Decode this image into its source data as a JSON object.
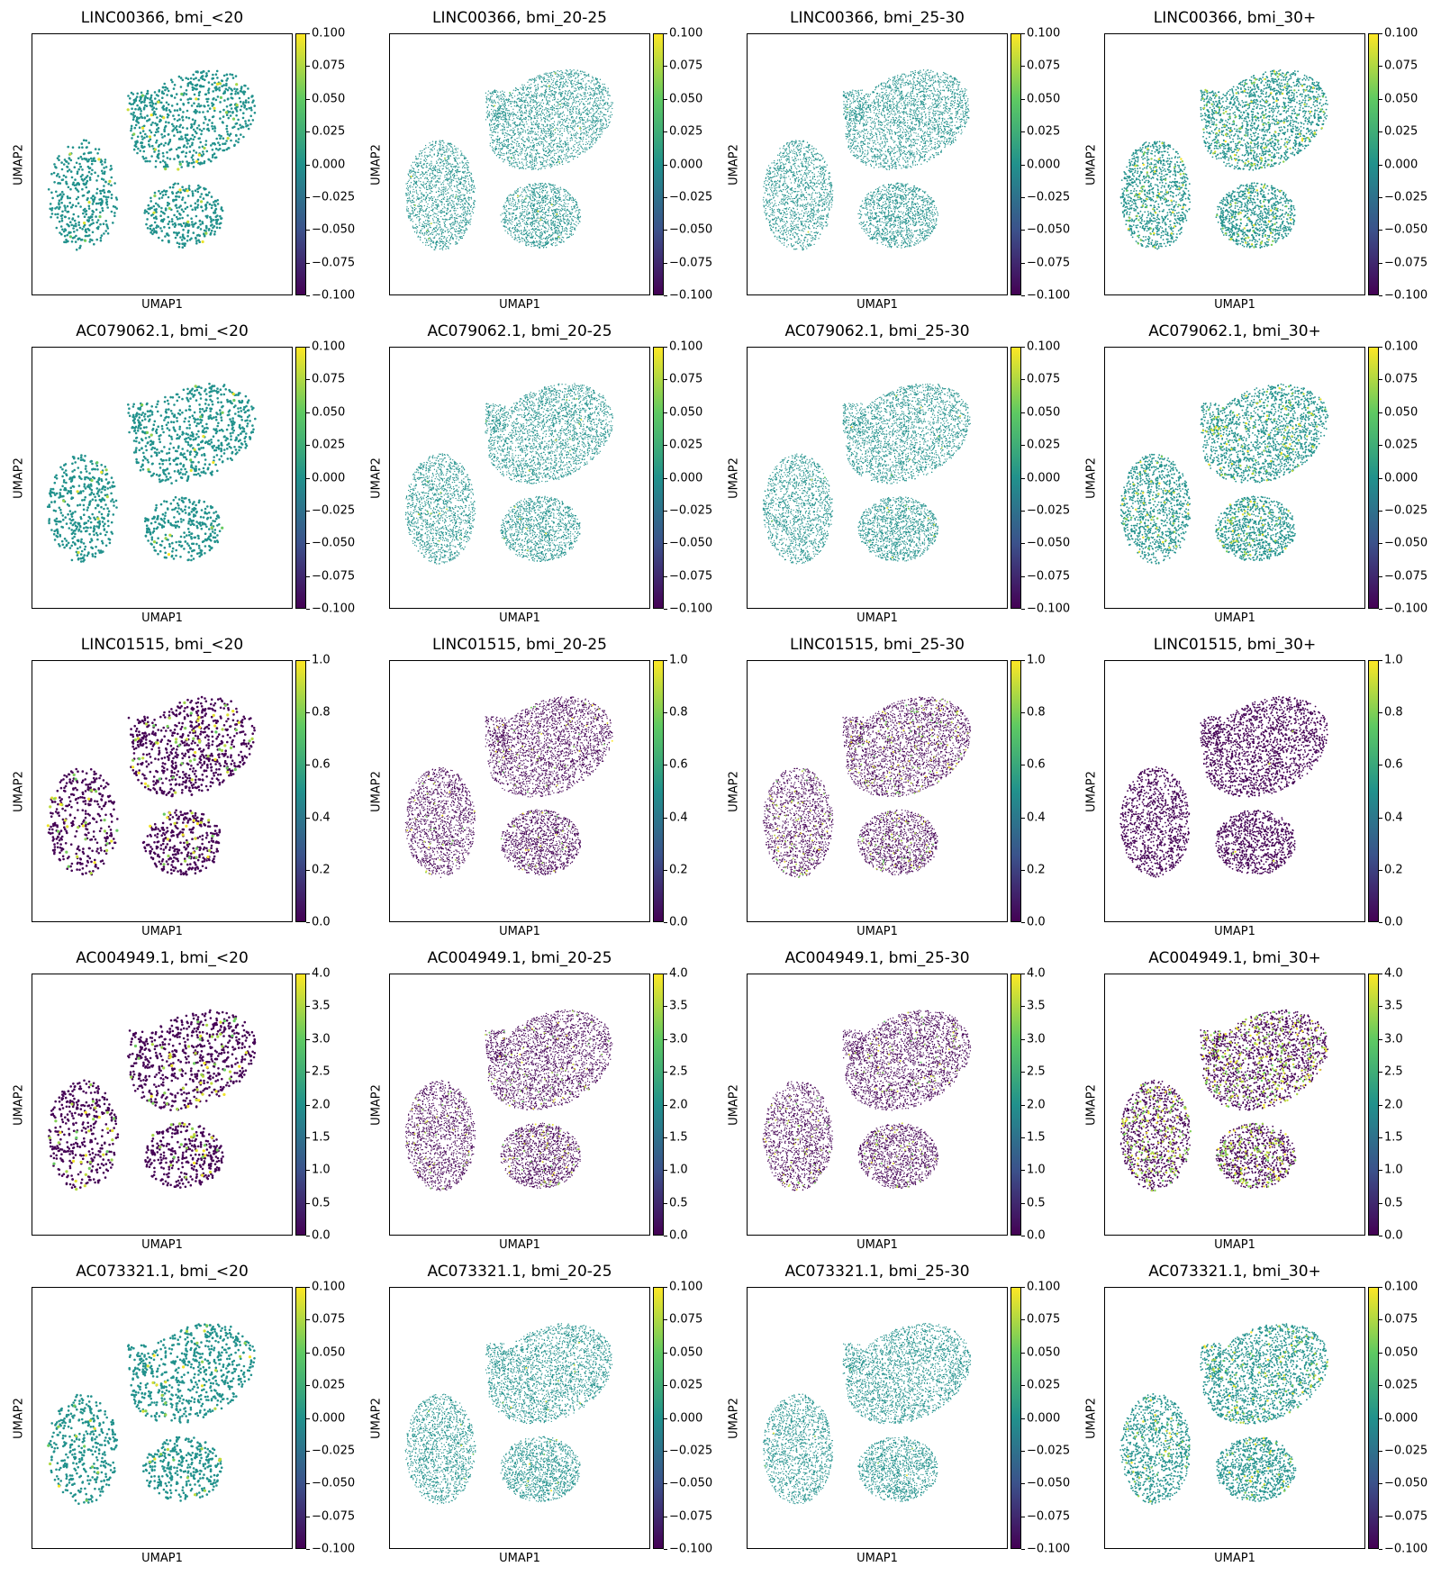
{
  "chart_data": {
    "type": "scatter",
    "layout": "grid of UMAP embedding plots, 5 genes x 4 BMI groups",
    "xlabel": "UMAP1",
    "ylabel": "UMAP2",
    "colormap": "viridis",
    "colormap_stops": [
      "#440154",
      "#3b528b",
      "#21918c",
      "#5ec962",
      "#fde725"
    ],
    "background_color": "#21918c",
    "groups": [
      "bmi_<20",
      "bmi_20-25",
      "bmi_25-30",
      "bmi_30+"
    ],
    "genes": [
      {
        "gene": "LINC00366",
        "color_range": [
          -0.1,
          0.1
        ],
        "colorbar_ticks": [
          "0.100",
          "0.075",
          "0.050",
          "0.025",
          "0.000",
          "−0.025",
          "−0.050",
          "−0.075",
          "−0.100"
        ],
        "panels": [
          {
            "title": "LINC00366, bmi_<20",
            "base_value": 0.0,
            "highlight_density": 0.03
          },
          {
            "title": "LINC00366, bmi_20-25",
            "base_value": 0.0,
            "highlight_density": 0.004
          },
          {
            "title": "LINC00366, bmi_25-30",
            "base_value": 0.0,
            "highlight_density": 0.002
          },
          {
            "title": "LINC00366, bmi_30+",
            "base_value": 0.0,
            "highlight_density": 0.05
          }
        ]
      },
      {
        "gene": "AC079062.1",
        "color_range": [
          -0.1,
          0.1
        ],
        "colorbar_ticks": [
          "0.100",
          "0.075",
          "0.050",
          "0.025",
          "0.000",
          "−0.025",
          "−0.050",
          "−0.075",
          "−0.100"
        ],
        "panels": [
          {
            "title": "AC079062.1, bmi_<20",
            "base_value": 0.0,
            "highlight_density": 0.02
          },
          {
            "title": "AC079062.1, bmi_20-25",
            "base_value": 0.0,
            "highlight_density": 0.004
          },
          {
            "title": "AC079062.1, bmi_25-30",
            "base_value": 0.0,
            "highlight_density": 0.003
          },
          {
            "title": "AC079062.1, bmi_30+",
            "base_value": 0.0,
            "highlight_density": 0.05
          }
        ]
      },
      {
        "gene": "LINC01515",
        "color_range": [
          0,
          1
        ],
        "colorbar_ticks": [
          "1.0",
          "0.8",
          "0.6",
          "0.4",
          "0.2",
          "0.0"
        ],
        "panels": [
          {
            "title": "LINC01515, bmi_<20",
            "base_value": 0.0,
            "highlight_density": 0.08
          },
          {
            "title": "LINC01515, bmi_20-25",
            "base_value": 0.0,
            "highlight_density": 0.02
          },
          {
            "title": "LINC01515, bmi_25-30",
            "base_value": 0.0,
            "highlight_density": 0.05
          },
          {
            "title": "LINC01515, bmi_30+",
            "base_value": 0.0,
            "highlight_density": 0.002
          }
        ]
      },
      {
        "gene": "AC004949.1",
        "color_range": [
          0,
          4
        ],
        "colorbar_ticks": [
          "4.0",
          "3.5",
          "3.0",
          "2.5",
          "2.0",
          "1.5",
          "1.0",
          "0.5",
          "0.0"
        ],
        "panels": [
          {
            "title": "AC004949.1, bmi_<20",
            "base_value": 0.0,
            "highlight_density": 0.07
          },
          {
            "title": "AC004949.1, bmi_20-25",
            "base_value": 0.0,
            "highlight_density": 0.03
          },
          {
            "title": "AC004949.1, bmi_25-30",
            "base_value": 0.0,
            "highlight_density": 0.03
          },
          {
            "title": "AC004949.1, bmi_30+",
            "base_value": 0.0,
            "highlight_density": 0.15
          }
        ]
      },
      {
        "gene": "AC073321.1",
        "color_range": [
          -0.1,
          0.1
        ],
        "colorbar_ticks": [
          "0.100",
          "0.075",
          "0.050",
          "0.025",
          "0.000",
          "−0.025",
          "−0.050",
          "−0.075",
          "−0.100"
        ],
        "panels": [
          {
            "title": "AC073321.1, bmi_<20",
            "base_value": 0.0,
            "highlight_density": 0.03
          },
          {
            "title": "AC073321.1, bmi_20-25",
            "base_value": 0.0,
            "highlight_density": 0.004
          },
          {
            "title": "AC073321.1, bmi_25-30",
            "base_value": 0.0,
            "highlight_density": 0.002
          },
          {
            "title": "AC073321.1, bmi_30+",
            "base_value": 0.0,
            "highlight_density": 0.05
          }
        ]
      }
    ]
  }
}
